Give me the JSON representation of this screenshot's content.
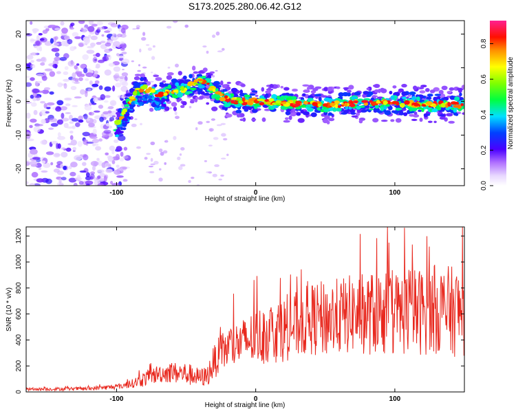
{
  "page": {
    "title": "S173.2025.280.06.42.G12"
  },
  "chart_data": [
    {
      "type": "heatmap",
      "title": "S173.2025.280.06.42.G12",
      "xlabel": "Height of straight line (km)",
      "ylabel": "Frequency (Hz)",
      "xlim": [
        -165,
        150
      ],
      "ylim": [
        -25,
        24
      ],
      "xticks": [
        -100,
        0,
        100
      ],
      "yticks": [
        -20,
        -10,
        0,
        10,
        20
      ],
      "colorbar": {
        "label": "Normalized spectral amplitude",
        "range": [
          0,
          0.93
        ],
        "ticks": [
          0.0,
          0.2,
          0.4,
          0.6,
          0.8
        ]
      },
      "ridge": {
        "x": [
          -100,
          -95,
          -90,
          -85,
          -80,
          -75,
          -70,
          -65,
          -60,
          -55,
          -50,
          -45,
          -40,
          -35,
          -30,
          -25,
          -20,
          -15,
          -10,
          -5,
          0,
          25,
          50,
          75,
          100,
          125,
          150
        ],
        "y": [
          -7,
          -4,
          0,
          3,
          4,
          3,
          2,
          2.5,
          3,
          3.5,
          4,
          5,
          6,
          5,
          3,
          1.5,
          0.5,
          0.2,
          0,
          0,
          0,
          -0.5,
          -1,
          -0.5,
          -0.5,
          -1,
          -1
        ]
      }
    },
    {
      "type": "line",
      "xlabel": "Height of straight line (km)",
      "ylabel": "SNR (10 * v/v)",
      "xlim": [
        -165,
        150
      ],
      "ylim": [
        0,
        1270
      ],
      "xticks": [
        -100,
        0,
        100
      ],
      "yticks": [
        0,
        200,
        400,
        600,
        800,
        1000,
        1200
      ],
      "series": [
        {
          "name": "SNR",
          "color": "#e8281e",
          "envelope": {
            "x": [
              -165,
              -120,
              -100,
              -90,
              -80,
              -70,
              -60,
              -50,
              -40,
              -35,
              -30,
              -25,
              -20,
              -10,
              0,
              10,
              20,
              30,
              40,
              50,
              60,
              70,
              80,
              90,
              100,
              110,
              120,
              130,
              140,
              150
            ],
            "base": [
              20,
              25,
              40,
              60,
              100,
              140,
              150,
              140,
              110,
              120,
              230,
              300,
              340,
              380,
              420,
              460,
              480,
              520,
              560,
              560,
              580,
              600,
              600,
              610,
              600,
              620,
              620,
              640,
              620,
              620
            ],
            "spread": [
              10,
              15,
              20,
              30,
              60,
              70,
              80,
              90,
              70,
              80,
              130,
              150,
              170,
              180,
              220,
              240,
              250,
              260,
              280,
              300,
              300,
              310,
              320,
              330,
              330,
              340,
              340,
              350,
              350,
              350
            ]
          }
        }
      ]
    }
  ]
}
